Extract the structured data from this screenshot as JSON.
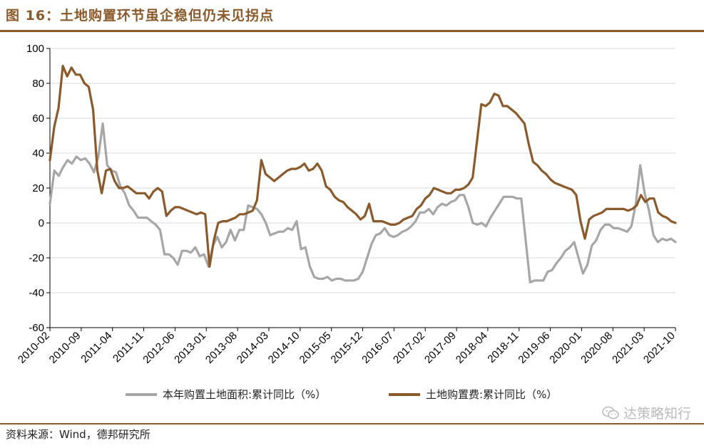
{
  "header": {
    "title": "图 16：土地购置环节虽企稳但仍未见拐点"
  },
  "footer": {
    "source": "资料来源：Wind，德邦研究所",
    "watermark": "达策略知行"
  },
  "colors": {
    "brand": "#8b5a2b",
    "series_area": "#a6a6a6",
    "series_cost": "#8b5a2b",
    "grid": "#d9d9d9"
  },
  "chart_data": {
    "type": "line",
    "title": "",
    "xlabel": "",
    "ylabel": "",
    "ylim": [
      -60,
      100
    ],
    "yticks": [
      100,
      80,
      60,
      40,
      20,
      0,
      -20,
      -40,
      -60
    ],
    "x_tick_labels": [
      "2010-02",
      "2010-09",
      "2011-04",
      "2011-11",
      "2012-06",
      "2013-01",
      "2013-08",
      "2014-03",
      "2014-10",
      "2015-05",
      "2015-12",
      "2016-07",
      "2017-02",
      "2017-09",
      "2018-04",
      "2018-11",
      "2019-06",
      "2020-01",
      "2020-08",
      "2021-03",
      "2021-10"
    ],
    "x_start": "2010-02",
    "x_end": "2021-10",
    "grid": "horizontal",
    "legend_position": "bottom",
    "series": [
      {
        "name": "本年购置土地面积:累计同比（%）",
        "color": "#a6a6a6",
        "values": [
          11,
          30,
          27,
          32,
          36,
          34,
          38,
          36,
          37,
          34,
          29,
          38,
          57,
          33,
          30,
          29,
          21,
          17,
          10,
          7,
          3,
          3,
          3,
          1,
          -1,
          -4,
          -18,
          -18,
          -20,
          -24,
          -16,
          -16,
          -17,
          -14,
          -19,
          -18,
          -25,
          -13,
          -8,
          -14,
          -11,
          -4,
          -10,
          -4,
          -4,
          10,
          9,
          8,
          5,
          0,
          -7,
          -6,
          -5,
          -5,
          -3,
          -4,
          1,
          -15,
          -14,
          -25,
          -31,
          -32,
          -32,
          -31,
          -33,
          -32,
          -32,
          -33,
          -33,
          -33,
          -32,
          -28,
          -20,
          -12,
          -7,
          -6,
          -3,
          -7,
          -8,
          -7,
          -5,
          -4,
          -2,
          1,
          6,
          6,
          8,
          5,
          9,
          11,
          10,
          12,
          13,
          16,
          16,
          9,
          0,
          -1,
          0,
          -2,
          3,
          7,
          11,
          15,
          15,
          15,
          14,
          14,
          -10,
          -34,
          -33,
          -33,
          -33,
          -28,
          -27,
          -23,
          -20,
          -16,
          -14,
          -11,
          -20,
          -29,
          -24,
          -13,
          -10,
          -4,
          -1,
          -1,
          -3,
          -3,
          -4,
          -5,
          -2,
          11,
          33,
          17,
          7,
          -7,
          -11,
          -9,
          -10,
          -9,
          -11
        ]
      },
      {
        "name": "土地购置费:累计同比（%）",
        "color": "#8b5a2b",
        "values": [
          36,
          55,
          66,
          90,
          84,
          89,
          85,
          85,
          80,
          78,
          65,
          30,
          17,
          30,
          31,
          24,
          20,
          20,
          21,
          19,
          17,
          17,
          17,
          14,
          18,
          20,
          18,
          4,
          7,
          9,
          9,
          8,
          7,
          6,
          5,
          6,
          5,
          -25,
          -10,
          0,
          1,
          1,
          2,
          3,
          5,
          5,
          6,
          7,
          13,
          36,
          28,
          26,
          24,
          26,
          28,
          30,
          31,
          31,
          32,
          34,
          30,
          31,
          34,
          30,
          21,
          19,
          15,
          13,
          12,
          9,
          7,
          5,
          2,
          4,
          11,
          1,
          1,
          1,
          0,
          -1,
          -1,
          0,
          2,
          3,
          4,
          8,
          10,
          14,
          16,
          20,
          19,
          18,
          17,
          17,
          19,
          19,
          20,
          22,
          26,
          47,
          68,
          67,
          69,
          74,
          73,
          67,
          67,
          65,
          63,
          60,
          57,
          45,
          35,
          33,
          30,
          28,
          25,
          23,
          22,
          21,
          20,
          19,
          16,
          1,
          -9,
          2,
          4,
          5,
          6,
          8,
          8,
          8,
          8,
          8,
          7,
          8,
          10,
          16,
          12,
          14,
          14,
          6,
          4,
          3,
          1,
          0
        ]
      }
    ]
  }
}
